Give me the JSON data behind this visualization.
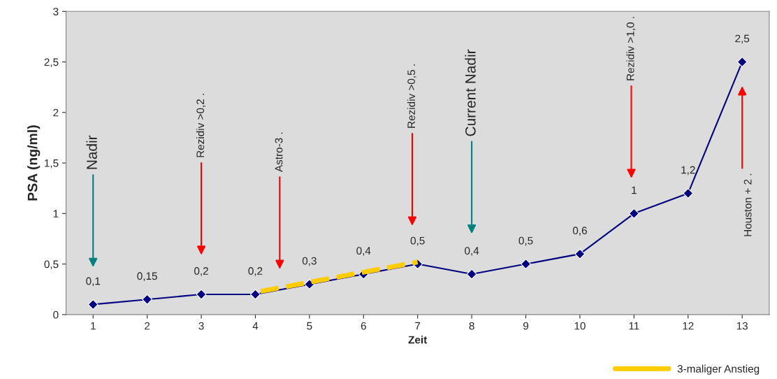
{
  "chart_data": {
    "type": "line",
    "xlabel": "Zeit",
    "ylabel": "PSA (ng/ml)",
    "x": [
      1,
      2,
      3,
      4,
      5,
      6,
      7,
      8,
      9,
      10,
      11,
      12,
      13
    ],
    "xlim": [
      0.5,
      13.5
    ],
    "xticks": [
      1,
      2,
      3,
      4,
      5,
      6,
      7,
      8,
      9,
      10,
      11,
      12,
      13
    ],
    "ylim": [
      0,
      3
    ],
    "yticks": [
      {
        "value": 0,
        "label": "0"
      },
      {
        "value": 0.5,
        "label": "0,5"
      },
      {
        "value": 1,
        "label": "1"
      },
      {
        "value": 1.5,
        "label": "1,5"
      },
      {
        "value": 2,
        "label": "2"
      },
      {
        "value": 2.5,
        "label": "2,5"
      },
      {
        "value": 3,
        "label": "3"
      }
    ],
    "marker": "diamond",
    "grid": false,
    "legend": "bottom right",
    "series": [
      {
        "color": "#000080",
        "values": [
          0.1,
          0.15,
          0.2,
          0.2,
          0.3,
          0.4,
          0.5,
          0.4,
          0.5,
          0.6,
          1,
          1.2,
          2.5
        ],
        "value_labels": [
          "0,1",
          "0,15",
          "0,2",
          "0,2",
          "0,3",
          "0,4",
          "0,5",
          "0,4",
          "0,5",
          "0,6",
          "1",
          "1,2",
          "2,5"
        ]
      },
      {
        "name": "3-maliger Anstieg",
        "color": "#ffcc00",
        "type": "line",
        "line_style": "dashed",
        "marker": "none",
        "x": [
          4.1,
          7
        ],
        "values": [
          0.23,
          0.52
        ]
      }
    ],
    "annotations": [
      "Nadir",
      "Rezidiv >0,2 .",
      "Astro-3 .",
      "Rezidiv >0,5 .",
      "Current Nadir",
      "Rezidiv >1,0 .",
      "Houston + 2 ."
    ]
  }
}
